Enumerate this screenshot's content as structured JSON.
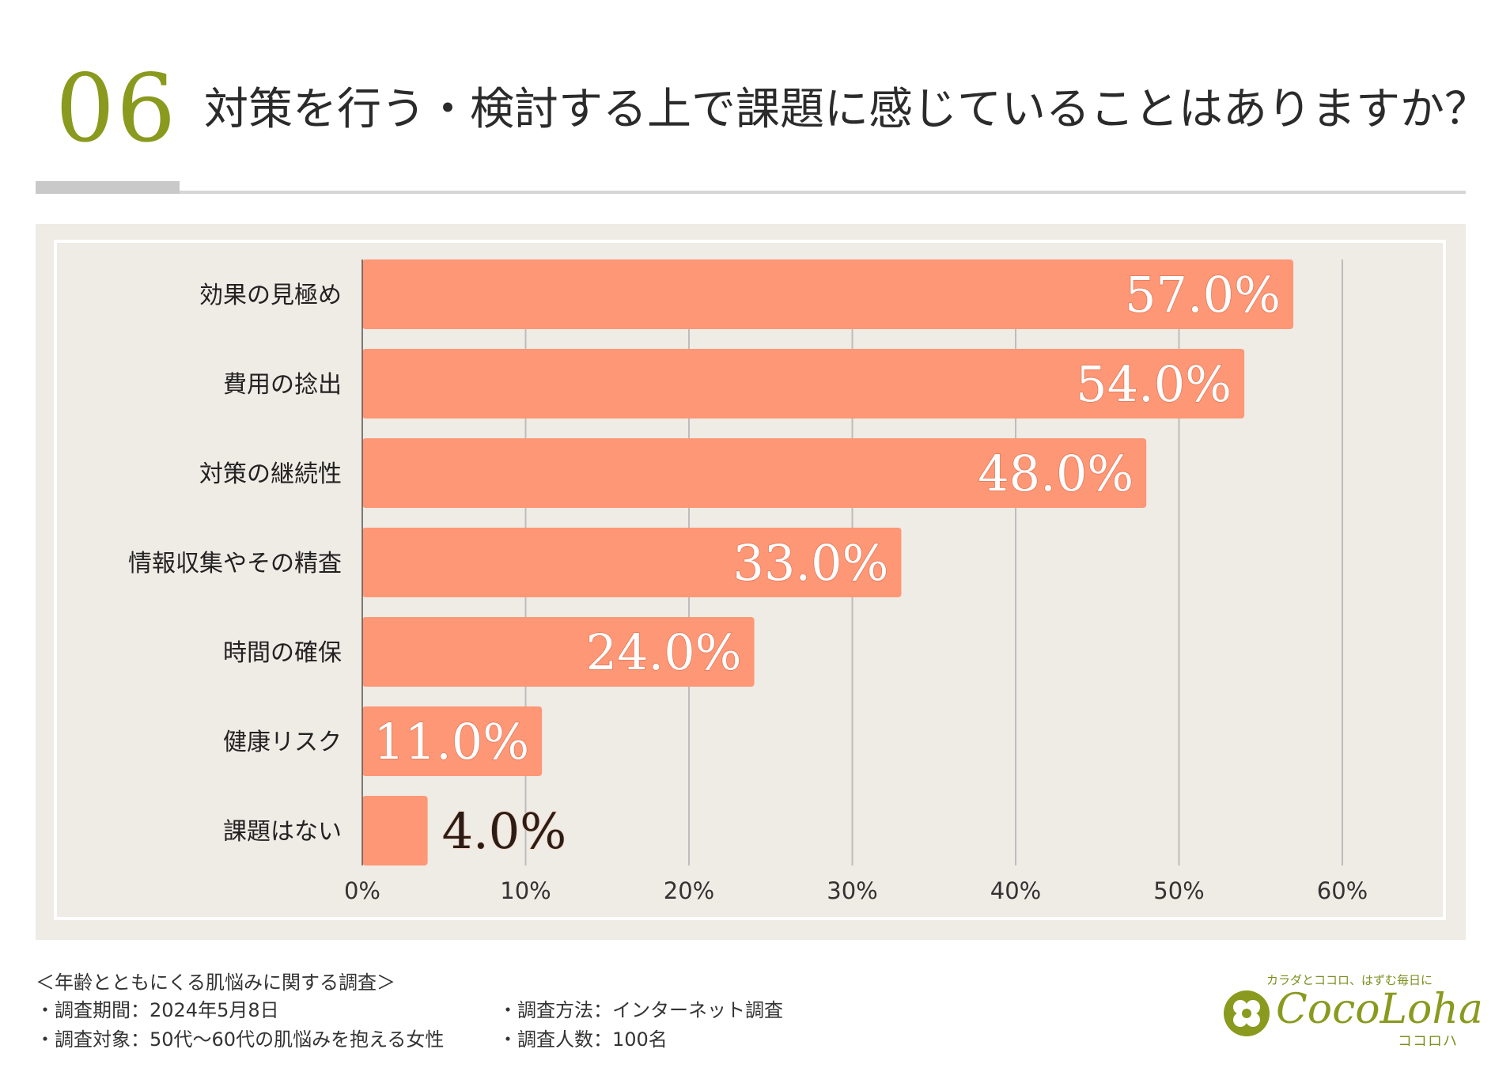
{
  "header": {
    "number": "06",
    "title": "対策を行う・検討する上で課題に感じていることはありますか？"
  },
  "chart_data": {
    "type": "bar",
    "orientation": "horizontal",
    "categories": [
      "効果の見極め",
      "費用の捻出",
      "対策の継続性",
      "情報収集やその精査",
      "時間の確保",
      "健康リスク",
      "課題はない"
    ],
    "values": [
      57.0,
      54.0,
      48.0,
      33.0,
      24.0,
      11.0,
      4.0
    ],
    "value_labels": [
      "57.0%",
      "54.0%",
      "48.0%",
      "33.0%",
      "24.0%",
      "11.0%",
      "4.0%"
    ],
    "x_ticks": [
      "0%",
      "10%",
      "20%",
      "30%",
      "40%",
      "50%",
      "60%"
    ],
    "xlim": [
      0,
      60
    ],
    "grid": true,
    "bar_color": "#fd9775",
    "title": "",
    "xlabel": "",
    "ylabel": ""
  },
  "footer": {
    "survey_title": "＜年齢とともにくる肌悩みに関する調査＞",
    "period": "・調査期間：2024年5月8日",
    "method": "・調査方法：インターネット調査",
    "target": "・調査対象：50代～60代の肌悩みを抱える女性",
    "count": "・調査人数：100名"
  },
  "logo": {
    "tagline": "カラダとココロ、はずむ毎日に",
    "name": "CocoLoha",
    "kana": "ココロハ"
  },
  "colors": {
    "accent": "#8a9a1e",
    "bar": "#fd9775",
    "panel": "#efebe5"
  }
}
